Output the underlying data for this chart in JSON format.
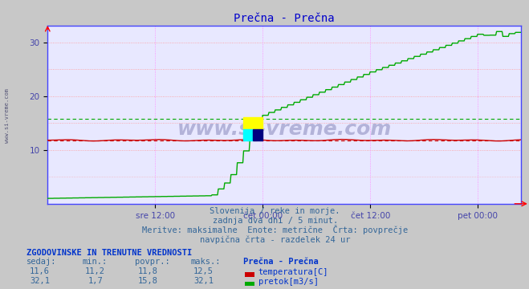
{
  "title": "Prečna - Prečna",
  "title_color": "#0000cc",
  "bg_color": "#c8c8c8",
  "plot_bg_color": "#e8e8ff",
  "grid_color_h": "#ff9999",
  "grid_color_v": "#ff80ff",
  "x_labels": [
    "sre 12:00",
    "čet 00:00",
    "čet 12:00",
    "pet 00:00"
  ],
  "ylim": [
    0,
    33
  ],
  "yticks": [
    10,
    20,
    30
  ],
  "temp_color": "#cc0000",
  "flow_color": "#00aa00",
  "temp_avg": 11.8,
  "flow_avg": 15.8,
  "watermark_text": "www.si-vreme.com",
  "footer_lines": [
    "Slovenija / reke in morje.",
    "zadnja dva dni / 5 minut.",
    "Meritve: maksimalne  Enote: metrične  Črta: povprečje",
    "navpična črta - razdelek 24 ur"
  ],
  "table_header": "ZGODOVINSKE IN TRENUTNE VREDNOSTI",
  "table_cols": [
    "sedaj:",
    "min.:",
    "povpr.:",
    "maks.:"
  ],
  "table_row1": [
    "11,6",
    "11,2",
    "11,8",
    "12,5"
  ],
  "table_row2": [
    "32,1",
    "1,7",
    "15,8",
    "32,1"
  ],
  "legend_label1": "temperatura[C]",
  "legend_label2": "pretok[m3/s]",
  "station_label": "Prečna - Prečna",
  "left_label": "www.si-vreme.com",
  "spine_color": "#4444ff",
  "tick_color": "#4444aa"
}
